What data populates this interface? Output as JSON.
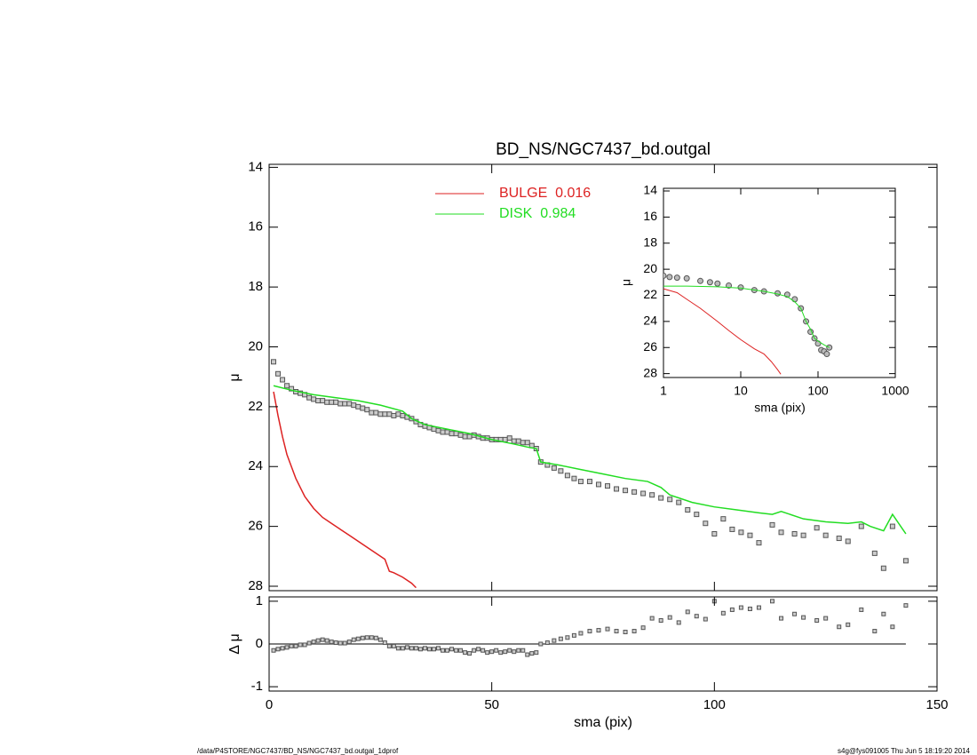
{
  "chart_data": [
    {
      "type": "line",
      "title": "BD_NS/NGC7437_bd.outgal",
      "ylabel": "μ",
      "xlim": [
        0,
        150
      ],
      "ylim": [
        13.9,
        28.15
      ],
      "y_reversed": true,
      "yticks": [
        14,
        16,
        18,
        20,
        22,
        24,
        26,
        28
      ],
      "series": [
        {
          "style": "markers",
          "color": "#555555",
          "x": [
            1,
            2,
            3,
            4,
            5,
            6,
            7,
            8,
            9,
            10,
            11,
            12,
            13,
            14,
            15,
            16,
            17,
            18,
            19,
            20,
            21,
            22,
            23,
            24,
            25,
            26,
            27,
            28,
            29,
            30,
            31,
            32,
            33,
            34,
            35,
            36,
            37,
            38,
            39,
            40,
            41,
            42,
            43,
            44,
            45,
            46,
            47,
            48,
            49,
            50,
            51,
            52,
            53,
            54,
            55,
            56,
            57,
            58,
            59,
            60,
            61,
            62.5,
            64,
            65.5,
            67,
            68.5,
            70,
            72,
            74,
            76,
            78,
            80,
            82,
            84,
            86,
            88,
            90,
            92,
            94,
            96,
            98,
            100,
            102,
            104,
            106,
            108,
            110,
            113,
            115,
            118,
            120,
            123,
            125,
            128,
            130,
            133,
            136,
            138,
            140,
            143
          ],
          "values": [
            20.5,
            20.9,
            21.1,
            21.3,
            21.4,
            21.5,
            21.55,
            21.6,
            21.7,
            21.75,
            21.8,
            21.8,
            21.85,
            21.85,
            21.85,
            21.9,
            21.9,
            21.9,
            21.95,
            22.0,
            22.05,
            22.1,
            22.2,
            22.2,
            22.25,
            22.25,
            22.25,
            22.3,
            22.25,
            22.3,
            22.35,
            22.4,
            22.5,
            22.6,
            22.65,
            22.7,
            22.75,
            22.8,
            22.85,
            22.85,
            22.9,
            22.9,
            22.95,
            23.0,
            23.0,
            22.95,
            23.0,
            23.05,
            23.05,
            23.1,
            23.1,
            23.1,
            23.1,
            23.05,
            23.15,
            23.15,
            23.2,
            23.2,
            23.3,
            23.4,
            23.85,
            23.95,
            24.05,
            24.15,
            24.3,
            24.4,
            24.5,
            24.5,
            24.6,
            24.65,
            24.75,
            24.8,
            24.85,
            24.9,
            24.95,
            25.05,
            25.1,
            25.2,
            25.45,
            25.6,
            25.9,
            26.25,
            25.75,
            26.1,
            26.2,
            26.3,
            26.55,
            25.95,
            26.2,
            26.25,
            26.3,
            26.05,
            26.3,
            26.4,
            26.5,
            26.0,
            26.9,
            27.4,
            26.0,
            27.15
          ]
        },
        {
          "name": "BULGE  0.016",
          "color": "#dd2222",
          "x": [
            1,
            2,
            3,
            4,
            5,
            6,
            7,
            8,
            9,
            10,
            12,
            14,
            16,
            18,
            20,
            22,
            24,
            26,
            27,
            28,
            30,
            32,
            33
          ],
          "values": [
            21.5,
            22.3,
            23.0,
            23.6,
            24.0,
            24.4,
            24.7,
            25.0,
            25.2,
            25.4,
            25.7,
            25.9,
            26.1,
            26.3,
            26.5,
            26.7,
            26.9,
            27.1,
            27.5,
            27.55,
            27.7,
            27.9,
            28.05
          ]
        },
        {
          "name": "DISK  0.984",
          "color": "#22dd22",
          "x": [
            1,
            5,
            10,
            15,
            20,
            25,
            30,
            32,
            35,
            40,
            45,
            50,
            55,
            58,
            60,
            61,
            65,
            70,
            75,
            80,
            85,
            88,
            90,
            95,
            100,
            105,
            110,
            113,
            115,
            120,
            125,
            130,
            133,
            135,
            138,
            140,
            143
          ],
          "values": [
            21.3,
            21.45,
            21.6,
            21.7,
            21.8,
            21.95,
            22.15,
            22.4,
            22.6,
            22.75,
            22.9,
            23.1,
            23.25,
            23.35,
            23.4,
            23.85,
            23.95,
            24.1,
            24.25,
            24.4,
            24.5,
            24.7,
            24.95,
            25.2,
            25.35,
            25.45,
            25.55,
            25.6,
            25.5,
            25.75,
            25.85,
            25.9,
            25.85,
            26.0,
            26.15,
            25.6,
            26.25
          ]
        }
      ]
    },
    {
      "type": "scatter",
      "ylabel": "Δ μ",
      "xlabel": "sma (pix)",
      "xlim": [
        0,
        150
      ],
      "ylim": [
        -1.1,
        1.1
      ],
      "xticks": [
        0,
        50,
        100,
        150
      ],
      "yticks": [
        1,
        0,
        -1
      ],
      "color": "#555555",
      "x": [
        1,
        2,
        3,
        4,
        5,
        6,
        7,
        8,
        9,
        10,
        11,
        12,
        13,
        14,
        15,
        16,
        17,
        18,
        19,
        20,
        21,
        22,
        23,
        24,
        25,
        26,
        27,
        28,
        29,
        30,
        31,
        32,
        33,
        34,
        35,
        36,
        37,
        38,
        39,
        40,
        41,
        42,
        43,
        44,
        45,
        46,
        47,
        48,
        49,
        50,
        51,
        52,
        53,
        54,
        55,
        56,
        57,
        58,
        59,
        60,
        61,
        62.5,
        64,
        65.5,
        67,
        68.5,
        70,
        72,
        74,
        76,
        78,
        80,
        82,
        84,
        86,
        88,
        90,
        92,
        94,
        96,
        98,
        100,
        102,
        104,
        106,
        108,
        110,
        113,
        115,
        118,
        120,
        123,
        125,
        128,
        130,
        133,
        136,
        138,
        140,
        143
      ],
      "values": [
        -0.15,
        -0.12,
        -0.1,
        -0.08,
        -0.05,
        -0.05,
        -0.02,
        -0.02,
        0.02,
        0.05,
        0.08,
        0.1,
        0.08,
        0.05,
        0.03,
        0.02,
        0.02,
        0.05,
        0.1,
        0.12,
        0.14,
        0.15,
        0.15,
        0.14,
        0.1,
        0.03,
        -0.05,
        -0.05,
        -0.1,
        -0.1,
        -0.08,
        -0.1,
        -0.1,
        -0.12,
        -0.1,
        -0.12,
        -0.12,
        -0.1,
        -0.15,
        -0.15,
        -0.12,
        -0.15,
        -0.15,
        -0.2,
        -0.22,
        -0.15,
        -0.12,
        -0.15,
        -0.2,
        -0.18,
        -0.15,
        -0.2,
        -0.18,
        -0.15,
        -0.18,
        -0.15,
        -0.15,
        -0.25,
        -0.22,
        -0.2,
        0.0,
        0.03,
        0.08,
        0.12,
        0.15,
        0.2,
        0.25,
        0.3,
        0.32,
        0.35,
        0.3,
        0.28,
        0.3,
        0.38,
        0.6,
        0.55,
        0.62,
        0.5,
        0.75,
        0.65,
        0.58,
        1.0,
        0.72,
        0.8,
        0.85,
        0.82,
        0.85,
        1.0,
        0.6,
        0.7,
        0.62,
        0.55,
        0.6,
        0.4,
        0.45,
        0.8,
        0.3,
        0.7,
        0.4,
        0.9
      ]
    },
    {
      "type": "line",
      "xscale": "log",
      "ylabel": "μ",
      "xlabel": "sma (pix)",
      "xlim": [
        1,
        1000
      ],
      "ylim": [
        13.8,
        28.3
      ],
      "y_reversed": true,
      "xticks": [
        1,
        10,
        100,
        1000
      ],
      "yticks": [
        14,
        16,
        18,
        20,
        22,
        24,
        26,
        28
      ],
      "series": [
        {
          "style": "markers",
          "color": "#555555",
          "x": [
            1,
            1.2,
            1.5,
            2,
            3,
            4,
            5,
            7,
            10,
            15,
            20,
            30,
            40,
            50,
            60,
            70,
            80,
            90,
            100,
            110,
            120,
            130,
            140
          ],
          "values": [
            20.5,
            20.6,
            20.65,
            20.7,
            20.9,
            21.0,
            21.1,
            21.25,
            21.4,
            21.6,
            21.7,
            21.85,
            21.95,
            22.3,
            23.0,
            24.0,
            24.8,
            25.3,
            25.7,
            26.2,
            26.3,
            26.5,
            26.0
          ]
        },
        {
          "color": "#dd2222",
          "x": [
            1,
            1.5,
            2,
            3,
            5,
            7,
            10,
            15,
            20,
            25,
            30,
            33
          ],
          "values": [
            21.5,
            21.8,
            22.3,
            23.0,
            24.0,
            24.7,
            25.4,
            26.1,
            26.5,
            27.1,
            27.7,
            28.05
          ]
        },
        {
          "color": "#22dd22",
          "x": [
            1,
            2,
            5,
            10,
            20,
            30,
            40,
            50,
            60,
            70,
            80,
            90,
            100,
            120,
            140
          ],
          "values": [
            21.3,
            21.3,
            21.35,
            21.45,
            21.7,
            21.9,
            22.1,
            22.5,
            23.0,
            24.0,
            24.6,
            25.3,
            25.5,
            25.8,
            26.0
          ]
        }
      ]
    }
  ],
  "footer_left": "/data/P4STORE/NGC7437/BD_NS/NGC7437_bd.outgal_1dprof",
  "footer_right": "s4g@fys091005  Thu Jun  5 18:19:20 2014"
}
